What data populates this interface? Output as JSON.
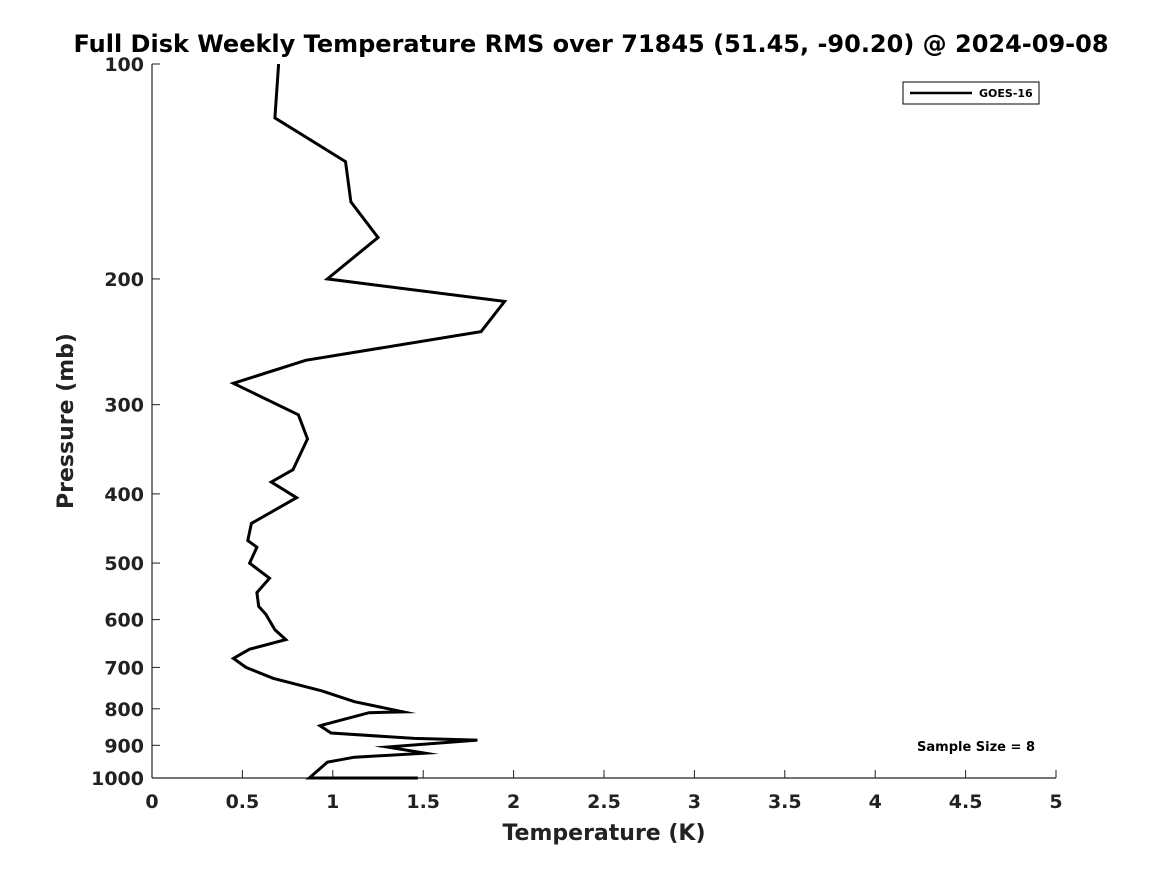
{
  "chart_data": {
    "type": "line",
    "title": "Full Disk Weekly Temperature RMS over 71845 (51.45, -90.20) @ 2024-09-08",
    "xlabel": "Temperature (K)",
    "ylabel": "Pressure (mb)",
    "xlim": [
      0,
      5
    ],
    "ylim": [
      1000,
      100
    ],
    "y_scale": "log",
    "x_ticks": [
      0,
      0.5,
      1,
      1.5,
      2,
      2.5,
      3,
      3.5,
      4,
      4.5,
      5
    ],
    "x_tick_labels": [
      "0",
      "0.5",
      "1",
      "1.5",
      "2",
      "2.5",
      "3",
      "3.5",
      "4",
      "4.5",
      "5"
    ],
    "y_ticks": [
      100,
      200,
      300,
      400,
      500,
      600,
      700,
      800,
      900,
      1000
    ],
    "y_tick_labels": [
      "100",
      "200",
      "300",
      "400",
      "500",
      "600",
      "700",
      "800",
      "900",
      "1000"
    ],
    "grid": false,
    "legend_position": "top-right",
    "series": [
      {
        "name": "GOES-16",
        "color": "#000000",
        "x": [
          0.7,
          0.68,
          1.07,
          1.1,
          1.25,
          0.97,
          1.95,
          1.82,
          0.85,
          0.45,
          0.81,
          0.86,
          0.78,
          0.66,
          0.8,
          0.55,
          0.53,
          0.58,
          0.54,
          0.65,
          0.58,
          0.59,
          0.63,
          0.68,
          0.74,
          0.54,
          0.45,
          0.52,
          0.67,
          0.94,
          1.12,
          1.39,
          1.2,
          0.95,
          0.93,
          0.99,
          1.45,
          1.8,
          1.3,
          1.51,
          1.12,
          0.97,
          0.92,
          0.87,
          1.47
        ],
        "y": [
          100,
          119,
          137,
          156,
          175,
          200,
          215,
          237,
          260,
          280,
          310,
          335,
          370,
          385,
          405,
          440,
          465,
          475,
          500,
          525,
          550,
          575,
          590,
          620,
          640,
          660,
          680,
          700,
          725,
          755,
          782,
          808,
          810,
          842,
          845,
          865,
          880,
          885,
          905,
          923,
          935,
          950,
          975,
          1000,
          1030
        ]
      }
    ],
    "annotations": [
      "Sample Size = 8"
    ]
  }
}
